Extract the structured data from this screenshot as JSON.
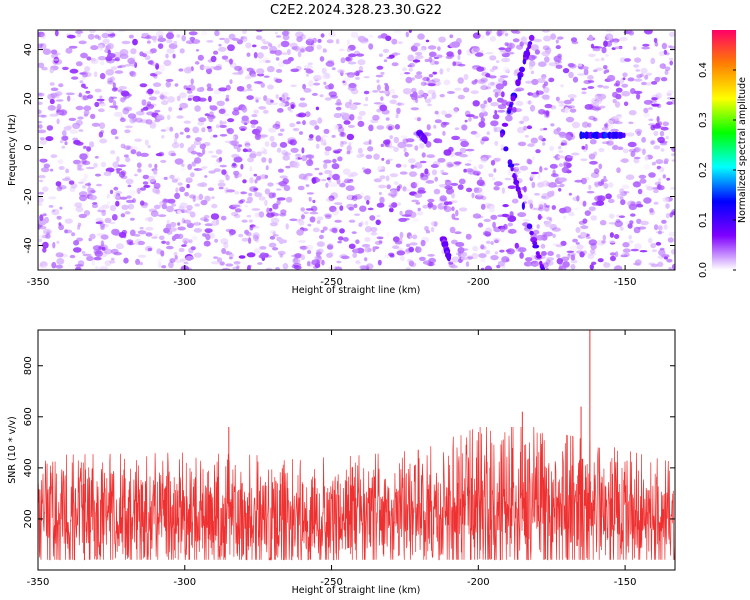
{
  "figure": {
    "title": "C2E2.2024.328.23.30.G22"
  },
  "chart_data": [
    {
      "type": "heatmap",
      "xlabel": "Height of straight line (km)",
      "ylabel": "Frequency (Hz)",
      "xlim": [
        -350,
        -133
      ],
      "ylim": [
        -50,
        48
      ],
      "xticks": [
        -350,
        -300,
        -250,
        -200,
        -150
      ],
      "yticks": [
        -40,
        -20,
        0,
        20,
        40
      ],
      "colorbar": {
        "label": "Normalized spectral amplitude",
        "range": [
          0.0,
          0.48
        ],
        "ticks": [
          0.0,
          0.1,
          0.2,
          0.3,
          0.4
        ],
        "colormap": [
          "#ffffff",
          "#7f00ff",
          "#0000ff",
          "#00ffff",
          "#00ff00",
          "#ffff00",
          "#ff8000",
          "#ff0066"
        ]
      },
      "background_level_range": [
        0.0,
        0.06
      ],
      "ridges": [
        {
          "points": [
            [
              -181,
              48
            ],
            [
              -192,
              5
            ],
            [
              -178,
              -50
            ]
          ],
          "amplitude": 0.1
        },
        {
          "points": [
            [
              -165,
              5
            ],
            [
              -150,
              5
            ]
          ],
          "amplitude": 0.13
        },
        {
          "points": [
            [
              -212,
              -37
            ],
            [
              -210,
              -45
            ]
          ],
          "amplitude": 0.09
        },
        {
          "points": [
            [
              -220,
              6
            ],
            [
              -218,
              3
            ]
          ],
          "amplitude": 0.09
        }
      ]
    },
    {
      "type": "line",
      "xlabel": "Height of straight line (km)",
      "ylabel": "SNR (10 * v/v)",
      "xlim": [
        -350,
        -133
      ],
      "ylim": [
        0,
        940
      ],
      "xticks": [
        -350,
        -300,
        -250,
        -200,
        -150
      ],
      "yticks": [
        200,
        400,
        600,
        800
      ],
      "series_color": "#ef3030",
      "envelope": [
        {
          "x": -350,
          "low": 40,
          "high": 450
        },
        {
          "x": -300,
          "low": 40,
          "high": 460
        },
        {
          "x": -250,
          "low": 40,
          "high": 440
        },
        {
          "x": -220,
          "low": 40,
          "high": 470
        },
        {
          "x": -200,
          "low": 40,
          "high": 560
        },
        {
          "x": -180,
          "low": 40,
          "high": 560
        },
        {
          "x": -150,
          "low": 40,
          "high": 470
        },
        {
          "x": -133,
          "low": 40,
          "high": 420
        }
      ],
      "peaks": [
        {
          "x": -285,
          "y": 560
        },
        {
          "x": -185,
          "y": 620
        },
        {
          "x": -165,
          "y": 640
        },
        {
          "x": -162,
          "y": 940
        }
      ]
    }
  ]
}
